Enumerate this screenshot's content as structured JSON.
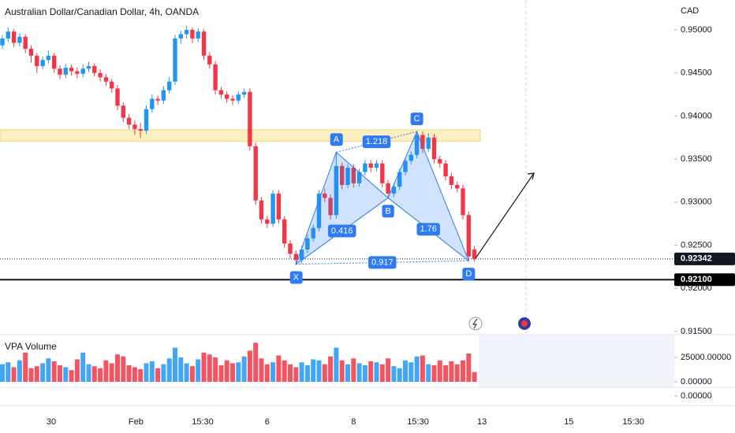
{
  "header": {
    "title": "Australian Dollar/Canadian Dollar, 4h, OANDA"
  },
  "chart_data": [
    {
      "type": "candlestick",
      "currency": "CAD",
      "up_color": "#2196f3",
      "down_color": "#f23645",
      "ylim": [
        0.91463,
        0.95347
      ],
      "yticks": [
        {
          "value": 0.95,
          "label": "0.95000"
        },
        {
          "value": 0.945,
          "label": "0.94500"
        },
        {
          "value": 0.94,
          "label": "0.94000"
        },
        {
          "value": 0.935,
          "label": "0.93500"
        },
        {
          "value": 0.93,
          "label": "0.93000"
        },
        {
          "value": 0.925,
          "label": "0.92500"
        },
        {
          "value": 0.92,
          "label": "0.92000"
        },
        {
          "value": 0.915,
          "label": "0.91500"
        }
      ],
      "time_labels": [
        {
          "index": 8.5,
          "label": "30"
        },
        {
          "index": 23.2,
          "label": "Feb"
        },
        {
          "index": 34.8,
          "label": "15:30"
        },
        {
          "index": 46,
          "label": "6"
        },
        {
          "index": 61,
          "label": "8"
        },
        {
          "index": 72.2,
          "label": "15:30"
        },
        {
          "index": 83.3,
          "label": "13"
        },
        {
          "index": 98.4,
          "label": "15"
        },
        {
          "index": 109.6,
          "label": "15:30"
        }
      ],
      "candles": [
        [
          0.9482,
          0.9494,
          0.9478,
          0.949
        ],
        [
          0.949,
          0.9503,
          0.9486,
          0.9498
        ],
        [
          0.9498,
          0.9501,
          0.948,
          0.9485
        ],
        [
          0.9485,
          0.9496,
          0.9481,
          0.9492
        ],
        [
          0.9492,
          0.9495,
          0.9473,
          0.9478
        ],
        [
          0.9478,
          0.9482,
          0.9462,
          0.947
        ],
        [
          0.947,
          0.9473,
          0.945,
          0.9458
        ],
        [
          0.9458,
          0.9469,
          0.9454,
          0.9465
        ],
        [
          0.9465,
          0.9476,
          0.9461,
          0.947
        ],
        [
          0.947,
          0.9473,
          0.945,
          0.9455
        ],
        [
          0.9455,
          0.9459,
          0.9443,
          0.9448
        ],
        [
          0.9448,
          0.9461,
          0.9444,
          0.9456
        ],
        [
          0.9456,
          0.946,
          0.9447,
          0.9452
        ],
        [
          0.9452,
          0.9456,
          0.9444,
          0.9449
        ],
        [
          0.9449,
          0.946,
          0.9445,
          0.9455
        ],
        [
          0.9455,
          0.9463,
          0.9451,
          0.9458
        ],
        [
          0.9458,
          0.9461,
          0.9446,
          0.945
        ],
        [
          0.945,
          0.9454,
          0.944,
          0.9445
        ],
        [
          0.9445,
          0.9449,
          0.9435,
          0.944
        ],
        [
          0.944,
          0.9443,
          0.9427,
          0.9432
        ],
        [
          0.9432,
          0.9436,
          0.9407,
          0.9412
        ],
        [
          0.9412,
          0.9416,
          0.9393,
          0.9398
        ],
        [
          0.9398,
          0.9402,
          0.9385,
          0.939
        ],
        [
          0.939,
          0.9395,
          0.9378,
          0.9385
        ],
        [
          0.9385,
          0.9392,
          0.9375,
          0.9383
        ],
        [
          0.9383,
          0.9412,
          0.9379,
          0.9408
        ],
        [
          0.9408,
          0.9425,
          0.9404,
          0.942
        ],
        [
          0.942,
          0.9424,
          0.9413,
          0.9418
        ],
        [
          0.9418,
          0.9435,
          0.9414,
          0.943
        ],
        [
          0.943,
          0.9445,
          0.9426,
          0.944
        ],
        [
          0.944,
          0.9494,
          0.9436,
          0.949
        ],
        [
          0.949,
          0.9499,
          0.9484,
          0.9495
        ],
        [
          0.9495,
          0.9505,
          0.949,
          0.95
        ],
        [
          0.95,
          0.9503,
          0.9485,
          0.949
        ],
        [
          0.949,
          0.9502,
          0.9486,
          0.9498
        ],
        [
          0.9498,
          0.9501,
          0.9465,
          0.947
        ],
        [
          0.947,
          0.9474,
          0.9455,
          0.946
        ],
        [
          0.946,
          0.9464,
          0.9425,
          0.943
        ],
        [
          0.943,
          0.9434,
          0.942,
          0.9425
        ],
        [
          0.9425,
          0.9429,
          0.9415,
          0.942
        ],
        [
          0.942,
          0.9424,
          0.9413,
          0.9418
        ],
        [
          0.9418,
          0.9429,
          0.9414,
          0.9425
        ],
        [
          0.9425,
          0.9432,
          0.9421,
          0.9428
        ],
        [
          0.9428,
          0.9432,
          0.936,
          0.9365
        ],
        [
          0.9365,
          0.9369,
          0.9297,
          0.9302
        ],
        [
          0.9302,
          0.9306,
          0.9275,
          0.928
        ],
        [
          0.928,
          0.9284,
          0.927,
          0.9275
        ],
        [
          0.9275,
          0.9314,
          0.9271,
          0.931
        ],
        [
          0.931,
          0.9314,
          0.9275,
          0.928
        ],
        [
          0.928,
          0.9284,
          0.9247,
          0.9252
        ],
        [
          0.9252,
          0.9256,
          0.9235,
          0.924
        ],
        [
          0.924,
          0.9244,
          0.9228,
          0.9233
        ],
        [
          0.9233,
          0.9249,
          0.9229,
          0.9245
        ],
        [
          0.9245,
          0.9262,
          0.9241,
          0.9258
        ],
        [
          0.9258,
          0.9274,
          0.9254,
          0.927
        ],
        [
          0.927,
          0.9314,
          0.9266,
          0.931
        ],
        [
          0.931,
          0.9316,
          0.93,
          0.9305
        ],
        [
          0.9305,
          0.9309,
          0.928,
          0.9285
        ],
        [
          0.9285,
          0.9358,
          0.9281,
          0.9342
        ],
        [
          0.9342,
          0.9346,
          0.9315,
          0.932
        ],
        [
          0.932,
          0.9344,
          0.9316,
          0.934
        ],
        [
          0.934,
          0.9344,
          0.9317,
          0.9322
        ],
        [
          0.9322,
          0.9339,
          0.9318,
          0.9335
        ],
        [
          0.9335,
          0.9349,
          0.9331,
          0.9345
        ],
        [
          0.9345,
          0.9349,
          0.9335,
          0.934
        ],
        [
          0.934,
          0.9349,
          0.9336,
          0.9345
        ],
        [
          0.9345,
          0.9349,
          0.9317,
          0.9322
        ],
        [
          0.9322,
          0.9326,
          0.9305,
          0.931
        ],
        [
          0.931,
          0.9322,
          0.9306,
          0.9318
        ],
        [
          0.9318,
          0.9339,
          0.9314,
          0.9335
        ],
        [
          0.9335,
          0.9352,
          0.9331,
          0.9348
        ],
        [
          0.9348,
          0.9359,
          0.9344,
          0.9355
        ],
        [
          0.9355,
          0.9382,
          0.9351,
          0.9378
        ],
        [
          0.9378,
          0.9382,
          0.9357,
          0.9362
        ],
        [
          0.9362,
          0.938,
          0.9358,
          0.9375
        ],
        [
          0.9375,
          0.9379,
          0.9345,
          0.935
        ],
        [
          0.935,
          0.9354,
          0.934,
          0.9345
        ],
        [
          0.9345,
          0.9349,
          0.9325,
          0.933
        ],
        [
          0.933,
          0.9334,
          0.9315,
          0.932
        ],
        [
          0.932,
          0.9324,
          0.9311,
          0.9316
        ],
        [
          0.9316,
          0.932,
          0.928,
          0.9285
        ],
        [
          0.9285,
          0.9289,
          0.9232,
          0.9237
        ],
        [
          0.9245,
          0.9249,
          0.9231,
          0.9234
        ]
      ],
      "zone": {
        "top": 0.9384,
        "bottom": 0.93705,
        "end_index": 83,
        "color": "#fbefc2"
      },
      "level": {
        "value": 0.921,
        "label": "0.92100"
      },
      "last_price": 0.92342,
      "pattern": {
        "color": "#2f7bf5",
        "points": [
          {
            "label": "X",
            "index": 51,
            "price": 0.9228
          },
          {
            "label": "A",
            "index": 58,
            "price": 0.9358
          },
          {
            "label": "B",
            "index": 67,
            "price": 0.9305
          },
          {
            "label": "C",
            "index": 72,
            "price": 0.9382
          },
          {
            "label": "D",
            "index": 81,
            "price": 0.9232
          }
        ],
        "ratios": [
          {
            "value": 0.416,
            "from": 0,
            "to": 2
          },
          {
            "value": 1.218,
            "from": 1,
            "to": 3
          },
          {
            "value": 1.76,
            "from": 2,
            "to": 4
          },
          {
            "value": 0.917,
            "from": 0,
            "to": 4
          }
        ]
      }
    },
    {
      "type": "bar",
      "title": "VPA Volume",
      "ylim": [
        -5645,
        48390
      ],
      "yticks": [
        {
          "value": 0,
          "label": "0.00000"
        },
        {
          "value": 25000,
          "label": "25000.00000"
        }
      ],
      "values": [
        18000,
        20000,
        15000,
        22000,
        30000,
        14000,
        16000,
        19000,
        24000,
        21000,
        17000,
        15000,
        12000,
        23000,
        30000,
        18000,
        16000,
        14000,
        22000,
        19000,
        28000,
        26000,
        17000,
        15000,
        13000,
        19000,
        21000,
        14000,
        18000,
        24000,
        35000,
        25000,
        19000,
        16000,
        23000,
        30000,
        28000,
        25000,
        17000,
        22000,
        19000,
        20000,
        26000,
        32000,
        40000,
        24000,
        18000,
        20000,
        27000,
        22000,
        18000,
        15000,
        20000,
        17000,
        23000,
        22000,
        18000,
        26000,
        35000,
        22000,
        18000,
        24000,
        19000,
        17000,
        21000,
        20000,
        18000,
        24000,
        16000,
        14000,
        22000,
        20000,
        26000,
        27000,
        18000,
        17000,
        22000,
        17000,
        21000,
        18000,
        22000,
        29000,
        10000
      ]
    },
    {
      "type": "pane",
      "ylim": [
        -1,
        1
      ],
      "yticks": [
        {
          "value": 0,
          "label": "0.00000"
        }
      ]
    }
  ]
}
